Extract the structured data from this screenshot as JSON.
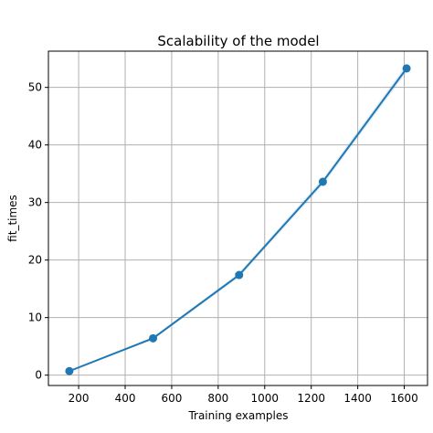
{
  "chart_data": {
    "type": "line",
    "title": "Scalability of the model",
    "xlabel": "Training examples",
    "ylabel": "fit_times",
    "xlim": [
      70,
      1700
    ],
    "ylim": [
      -1.8,
      56.3
    ],
    "xticks": [
      200,
      400,
      600,
      800,
      1000,
      1200,
      1400,
      1600
    ],
    "yticks": [
      0,
      10,
      20,
      30,
      40,
      50
    ],
    "grid": true,
    "series": [
      {
        "x": [
          160,
          520,
          890,
          1250,
          1610
        ],
        "y": [
          0.7,
          6.4,
          17.4,
          33.6,
          53.3
        ],
        "band_lower": [
          0.6,
          6.2,
          17.0,
          33.0,
          52.6
        ],
        "band_upper": [
          0.8,
          6.6,
          17.8,
          34.2,
          54.0
        ],
        "color": "#1f77b4",
        "band_color": "#1f77b4"
      }
    ]
  }
}
